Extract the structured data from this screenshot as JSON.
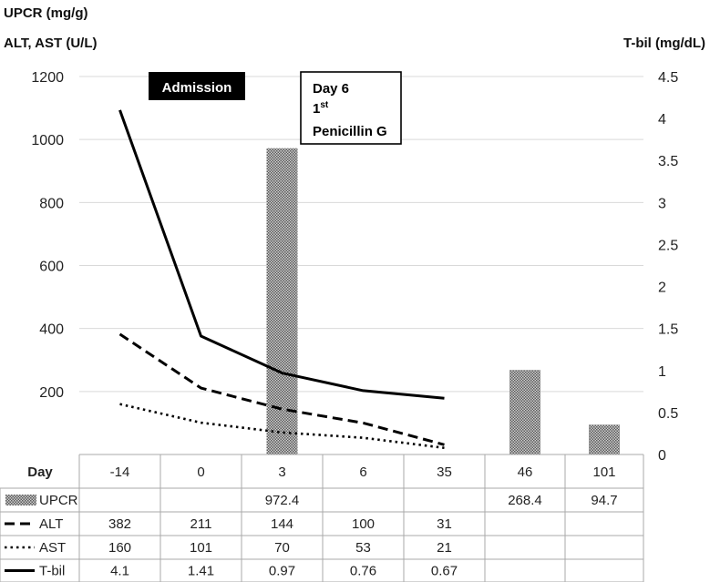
{
  "chart_data": {
    "type": "bar+line",
    "left_axis_title_1": "UPCR (mg/g)",
    "left_axis_title_2": "ALT, AST (U/L)",
    "right_axis_title": "T-bil (mg/dL)",
    "ylim_left": [
      0,
      1200
    ],
    "ylim_right": [
      0,
      4.5
    ],
    "left_ticks": [
      "200",
      "400",
      "600",
      "800",
      "1000",
      "1200"
    ],
    "right_ticks": [
      "0",
      "0.5",
      "1",
      "1.5",
      "2",
      "2.5",
      "3",
      "3.5",
      "4",
      "4.5"
    ],
    "grid": true,
    "table_header_label": "Day",
    "categories": [
      "-14",
      "0",
      "3",
      "6",
      "35",
      "46",
      "101"
    ],
    "series": [
      {
        "name": "UPCR",
        "kind": "bar",
        "axis": "left",
        "values": [
          null,
          null,
          972.4,
          null,
          null,
          268.4,
          94.7
        ],
        "labels": [
          "",
          "",
          "972.4",
          "",
          "",
          "268.4",
          "94.7"
        ]
      },
      {
        "name": "ALT",
        "kind": "line",
        "style": "dashed",
        "axis": "left",
        "values": [
          382,
          211,
          144,
          100,
          31,
          null,
          null
        ],
        "labels": [
          "382",
          "211",
          "144",
          "100",
          "31",
          "",
          ""
        ]
      },
      {
        "name": "AST",
        "kind": "line",
        "style": "dotted",
        "axis": "left",
        "values": [
          160,
          101,
          70,
          53,
          21,
          null,
          null
        ],
        "labels": [
          "160",
          "101",
          "70",
          "53",
          "21",
          "",
          ""
        ]
      },
      {
        "name": "T-bil",
        "kind": "line",
        "style": "solid",
        "axis": "right",
        "values": [
          4.1,
          1.41,
          0.97,
          0.76,
          0.67,
          null,
          null
        ],
        "labels": [
          "4.1",
          "1.41",
          "0.97",
          "0.76",
          "0.67",
          "",
          ""
        ]
      }
    ],
    "annotations": {
      "admission": "Admission",
      "day6_line1": "Day 6",
      "day6_line2_main": "1",
      "day6_line2_sup": "st",
      "day6_line3": "Penicillin G"
    }
  }
}
